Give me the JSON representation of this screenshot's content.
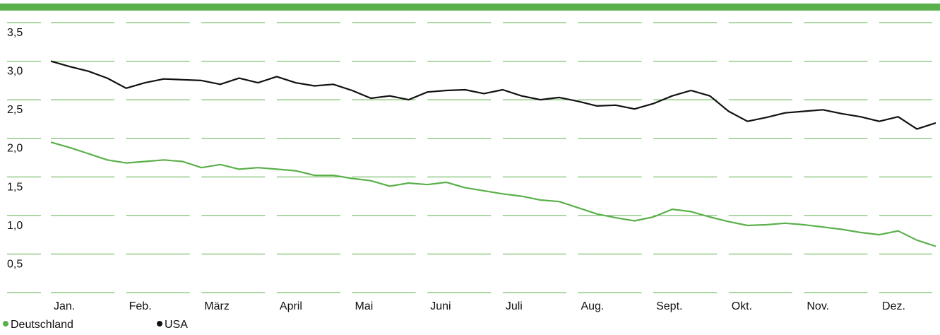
{
  "chart_data": {
    "type": "line",
    "categories": [
      "Jan.",
      null,
      null,
      null,
      "Feb.",
      null,
      null,
      null,
      "März",
      null,
      null,
      null,
      "April",
      null,
      null,
      null,
      "Mai",
      null,
      null,
      null,
      "Juni",
      null,
      null,
      null,
      "Juli",
      null,
      null,
      null,
      "Aug.",
      null,
      null,
      null,
      "Sept.",
      null,
      null,
      null,
      "Okt.",
      null,
      null,
      null,
      "Nov.",
      null,
      null,
      null,
      "Dez.",
      null,
      null,
      null
    ],
    "series": [
      {
        "name": "Deutschland",
        "color": "#5ab04a",
        "values": [
          1.95,
          1.88,
          1.8,
          1.72,
          1.68,
          1.7,
          1.72,
          1.7,
          1.62,
          1.66,
          1.6,
          1.62,
          1.6,
          1.58,
          1.52,
          1.52,
          1.48,
          1.45,
          1.38,
          1.42,
          1.4,
          1.43,
          1.36,
          1.32,
          1.28,
          1.25,
          1.2,
          1.18,
          1.1,
          1.02,
          0.97,
          0.93,
          0.98,
          1.08,
          1.05,
          0.98,
          0.92,
          0.87,
          0.88,
          0.9,
          0.88,
          0.85,
          0.82,
          0.78,
          0.75,
          0.8,
          0.68,
          0.6
        ]
      },
      {
        "name": "USA",
        "color": "#111111",
        "values": [
          3.0,
          2.93,
          2.87,
          2.78,
          2.65,
          2.72,
          2.77,
          2.76,
          2.75,
          2.7,
          2.78,
          2.72,
          2.8,
          2.72,
          2.68,
          2.7,
          2.62,
          2.52,
          2.55,
          2.5,
          2.6,
          2.62,
          2.63,
          2.58,
          2.63,
          2.55,
          2.5,
          2.53,
          2.48,
          2.42,
          2.43,
          2.38,
          2.45,
          2.55,
          2.62,
          2.55,
          2.35,
          2.22,
          2.27,
          2.33,
          2.35,
          2.37,
          2.32,
          2.28,
          2.22,
          2.28,
          2.12,
          2.2
        ]
      }
    ],
    "ylim": [
      0,
      3.5
    ],
    "yticks": [
      {
        "value": 0.5,
        "label": "0,5"
      },
      {
        "value": 1.0,
        "label": "1,0"
      },
      {
        "value": 1.5,
        "label": "1,5"
      },
      {
        "value": 2.0,
        "label": "2,0"
      },
      {
        "value": 2.5,
        "label": "2,5"
      },
      {
        "value": 3.0,
        "label": "3,0"
      },
      {
        "value": 3.5,
        "label": "3,5"
      }
    ],
    "grid": true
  }
}
